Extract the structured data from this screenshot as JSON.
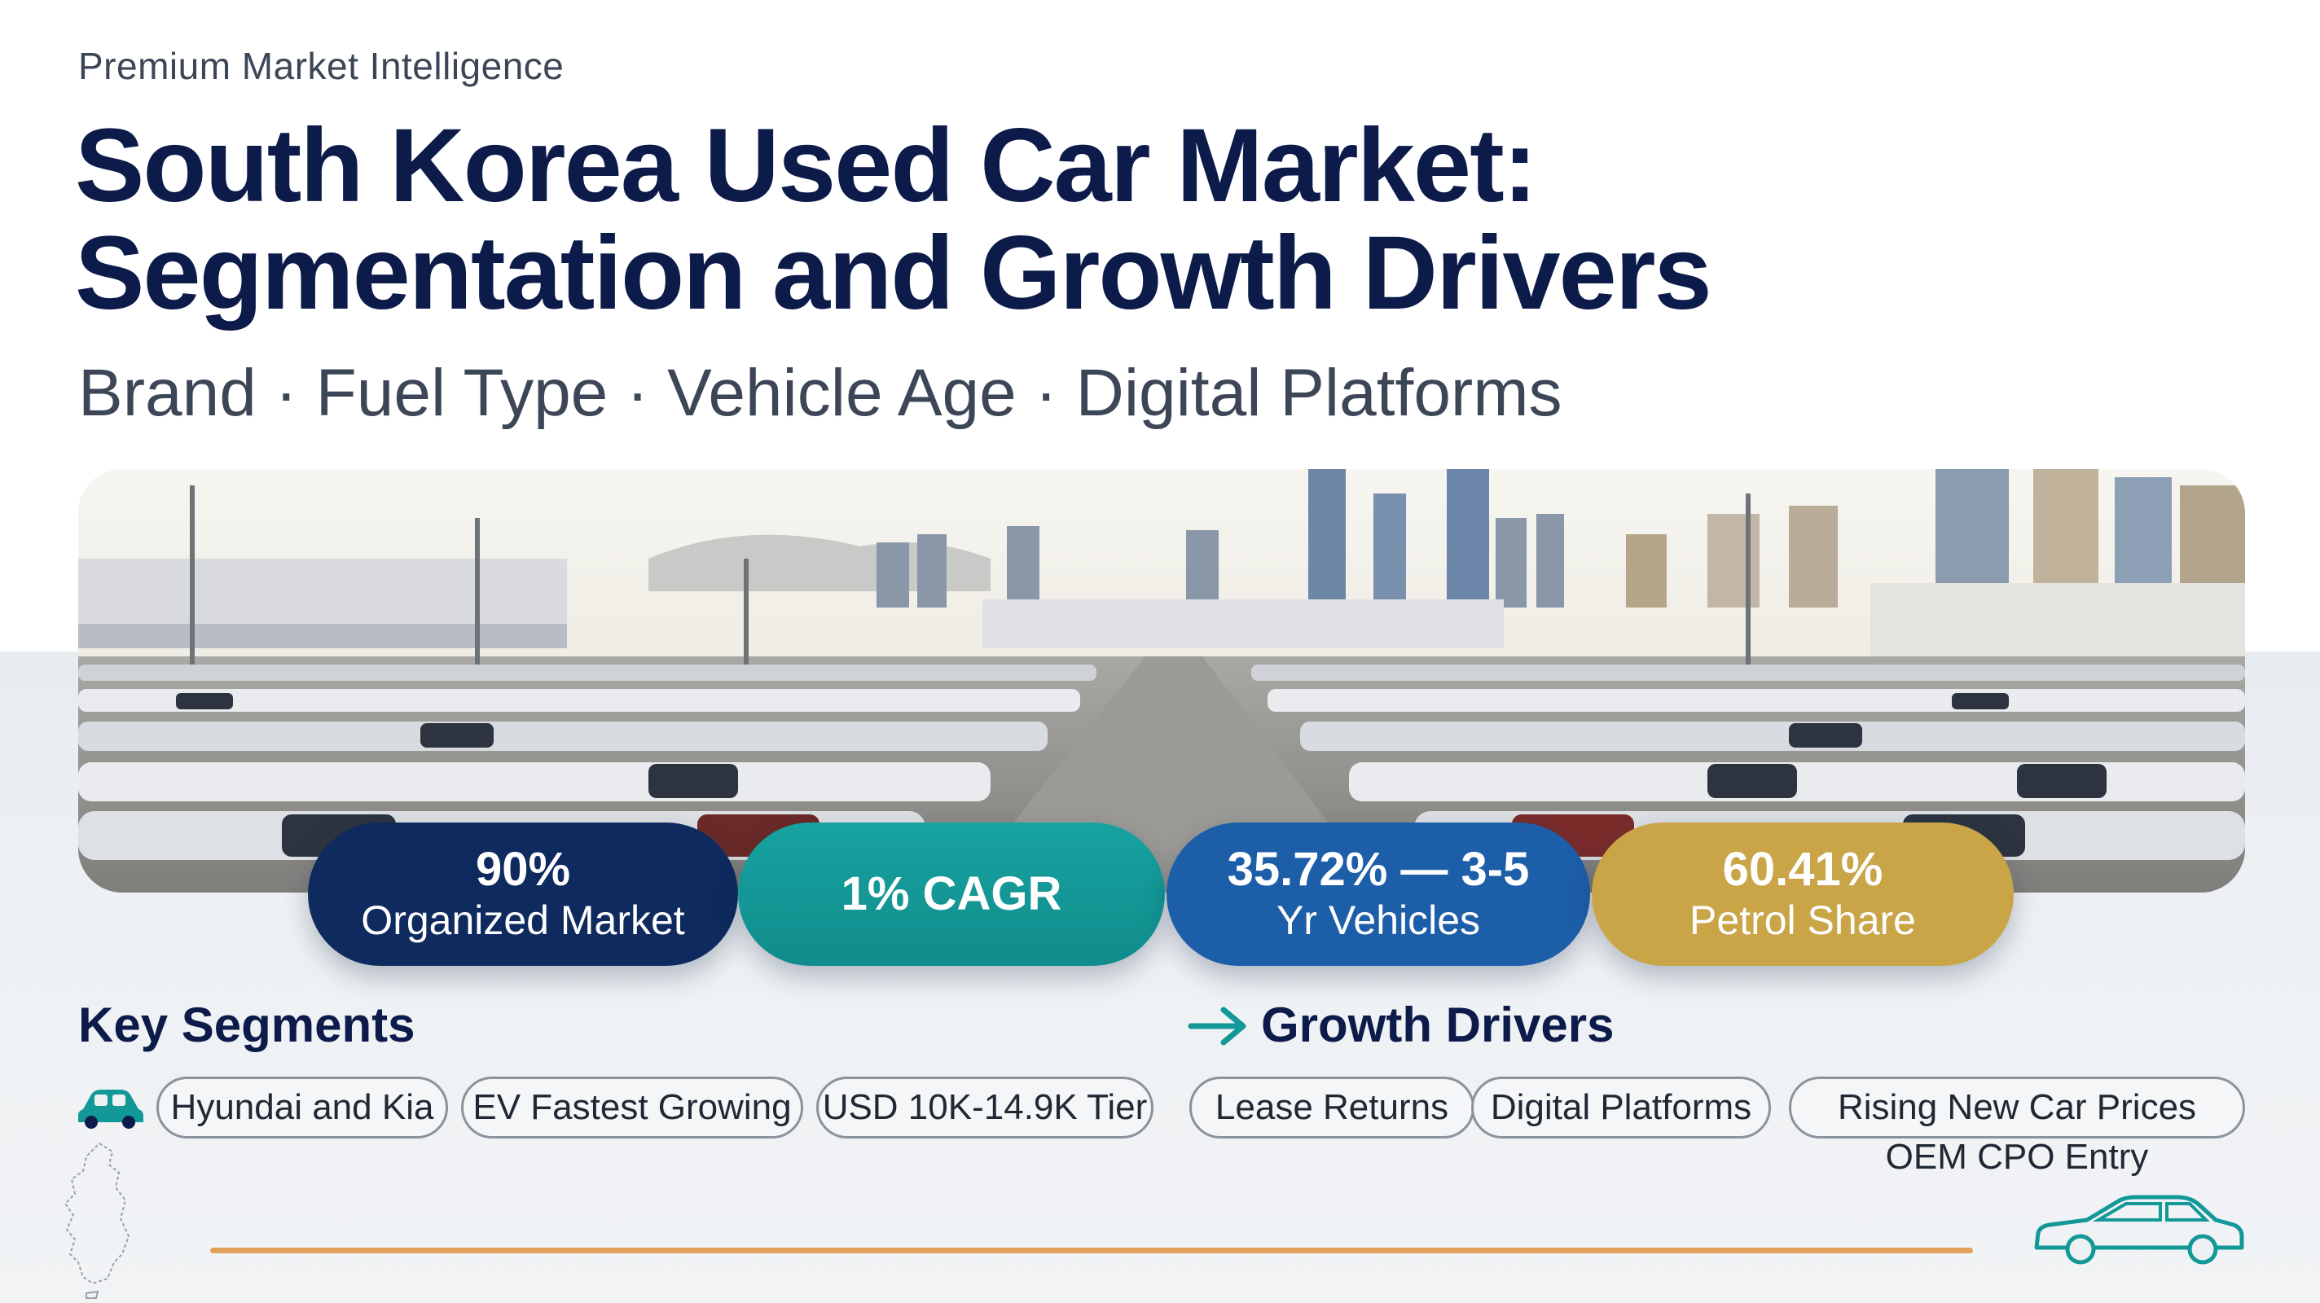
{
  "header": {
    "eyebrow": "Premium Market Intelligence",
    "title_line1": "South Korea Used Car Market:",
    "title_line2": "Segmentation and Growth Drivers",
    "subtitle": "Brand · Fuel Type · Vehicle Age · Digital Platforms"
  },
  "kpis": [
    {
      "value": "90%",
      "label": "Organized Market",
      "color": "#0e2a5f"
    },
    {
      "value": "",
      "label": "1% CAGR",
      "color": "#139898"
    },
    {
      "value": "35.72% — 3-5",
      "label": "Yr Vehicles",
      "color": "#1d5ea8"
    },
    {
      "value": "60.41%",
      "label": "Petrol Share",
      "color": "#c9a548"
    }
  ],
  "key_segments": {
    "heading": "Key Segments",
    "icon": "car-icon",
    "chips": [
      "Hyundai and Kia",
      "EV Fastest Growing",
      "USD 10K-14.9K Tier"
    ]
  },
  "growth_drivers": {
    "heading": "Growth Drivers",
    "icon": "arrow-right-icon",
    "chips": [
      "Lease Returns",
      "Digital Platforms",
      "Rising New Car Prices"
    ],
    "sub_note": "OEM CPO Entry"
  },
  "decor": {
    "divider_color": "#e1a158",
    "accent_teal": "#139898",
    "icons": [
      "korea-map-icon",
      "sedan-outline-icon"
    ]
  }
}
